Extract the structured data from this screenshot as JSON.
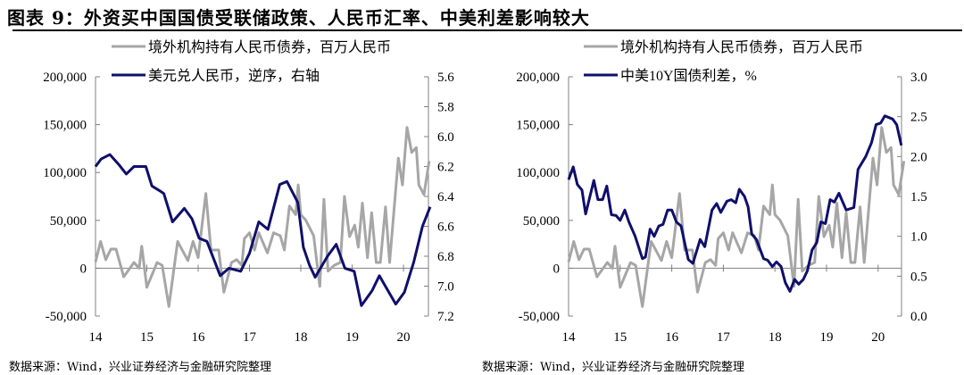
{
  "title": "图表 9：外资买中国国债受联储政策、人民币汇率、中美利差影响较大",
  "source_left": "数据来源：Wind，兴业证券经济与金融研究院整理",
  "source_right": "数据来源：Wind，兴业证券经济与金融研究院整理",
  "colors": {
    "gray": "#a6a6a6",
    "navy": "#0f0f6b"
  },
  "chart_data": [
    {
      "type": "line",
      "title": "",
      "x_ticks": [
        "14",
        "15",
        "16",
        "17",
        "18",
        "19",
        "20"
      ],
      "xlim": [
        2014,
        2020.6
      ],
      "y_left": {
        "ticks": [
          "200,000",
          "150,000",
          "100,000",
          "50,000",
          "0",
          "-50,000"
        ],
        "lim": [
          -50000,
          200000
        ]
      },
      "y_right": {
        "ticks": [
          "5.6",
          "5.8",
          "6.0",
          "6.2",
          "6.4",
          "6.6",
          "6.8",
          "7.0",
          "7.2"
        ],
        "lim": [
          5.6,
          7.2
        ],
        "inverted": true
      },
      "series": [
        {
          "name": "境外机构持有人民币债券，百万人民币",
          "axis": "left",
          "color": "gray",
          "x": [
            2014.0,
            2014.1,
            2014.2,
            2014.3,
            2014.4,
            2014.55,
            2014.75,
            2014.85,
            2014.9,
            2015.0,
            2015.2,
            2015.3,
            2015.43,
            2015.6,
            2015.8,
            2015.9,
            2016.0,
            2016.15,
            2016.25,
            2016.4,
            2016.5,
            2016.65,
            2016.75,
            2016.85,
            2016.9,
            2017.0,
            2017.1,
            2017.18,
            2017.35,
            2017.47,
            2017.6,
            2017.68,
            2017.78,
            2017.9,
            2017.95,
            2018.0,
            2018.1,
            2018.25,
            2018.37,
            2018.45,
            2018.53,
            2018.65,
            2018.77,
            2018.85,
            2018.95,
            2019.05,
            2019.12,
            2019.2,
            2019.3,
            2019.38,
            2019.47,
            2019.55,
            2019.65,
            2019.73,
            2019.9,
            2019.98,
            2020.07,
            2020.16,
            2020.25,
            2020.3,
            2020.4,
            2020.5
          ],
          "values": [
            6500,
            28000,
            9000,
            20000,
            20000,
            -9000,
            6000,
            0,
            23000,
            -20000,
            6000,
            3000,
            -40000,
            28000,
            8000,
            28000,
            11000,
            78000,
            19000,
            19000,
            -25000,
            6000,
            9000,
            3000,
            31000,
            37000,
            19000,
            37000,
            16000,
            37000,
            34000,
            19000,
            65000,
            56000,
            87000,
            56000,
            50000,
            34000,
            -19000,
            72000,
            -3000,
            3000,
            6000,
            75000,
            33000,
            45000,
            22000,
            68000,
            11000,
            58000,
            6000,
            6000,
            64000,
            6000,
            115000,
            87000,
            147000,
            121000,
            126000,
            87000,
            77000,
            112000
          ]
        },
        {
          "name": "美元兑人民币，逆序，右轴",
          "axis": "right",
          "color": "navy",
          "x": [
            2014.0,
            2014.11,
            2014.28,
            2014.46,
            2014.6,
            2014.75,
            2014.98,
            2015.1,
            2015.24,
            2015.33,
            2015.5,
            2015.73,
            2015.88,
            2016.02,
            2016.17,
            2016.43,
            2016.6,
            2016.83,
            2017.0,
            2017.18,
            2017.36,
            2017.59,
            2017.73,
            2017.94,
            2018.05,
            2018.17,
            2018.28,
            2018.52,
            2018.69,
            2018.86,
            2019.04,
            2019.18,
            2019.39,
            2019.53,
            2019.68,
            2019.85,
            2020.02,
            2020.2,
            2020.37,
            2020.52
          ],
          "values": [
            6.2,
            6.15,
            6.12,
            6.19,
            6.25,
            6.2,
            6.2,
            6.33,
            6.36,
            6.38,
            6.57,
            6.48,
            6.55,
            6.68,
            6.7,
            6.93,
            6.88,
            6.9,
            6.78,
            6.57,
            6.62,
            6.32,
            6.3,
            6.44,
            6.74,
            6.86,
            6.94,
            6.8,
            6.72,
            6.88,
            6.9,
            7.13,
            7.03,
            6.93,
            7.02,
            7.12,
            7.04,
            6.84,
            6.6,
            6.47
          ]
        }
      ]
    },
    {
      "type": "line",
      "title": "",
      "x_ticks": [
        "14",
        "15",
        "16",
        "17",
        "18",
        "19",
        "20"
      ],
      "xlim": [
        2014,
        2020.6
      ],
      "y_left": {
        "ticks": [
          "200,000",
          "150,000",
          "100,000",
          "50,000",
          "0",
          "-50,000"
        ],
        "lim": [
          -50000,
          200000
        ]
      },
      "y_right": {
        "ticks": [
          "3.0",
          "2.5",
          "2.0",
          "1.5",
          "1.0",
          "0.5",
          "0.0"
        ],
        "lim": [
          0,
          3.0
        ],
        "inverted": false
      },
      "series": [
        {
          "name": "境外机构持有人民币债券，百万人民币",
          "axis": "left",
          "color": "gray",
          "x": [
            2014.0,
            2014.1,
            2014.2,
            2014.3,
            2014.4,
            2014.55,
            2014.75,
            2014.85,
            2014.9,
            2015.0,
            2015.2,
            2015.3,
            2015.43,
            2015.6,
            2015.8,
            2015.9,
            2016.0,
            2016.15,
            2016.25,
            2016.4,
            2016.5,
            2016.65,
            2016.75,
            2016.85,
            2016.9,
            2017.0,
            2017.1,
            2017.18,
            2017.35,
            2017.47,
            2017.6,
            2017.68,
            2017.78,
            2017.9,
            2017.95,
            2018.0,
            2018.1,
            2018.25,
            2018.37,
            2018.45,
            2018.53,
            2018.65,
            2018.77,
            2018.85,
            2018.95,
            2019.05,
            2019.12,
            2019.2,
            2019.3,
            2019.38,
            2019.47,
            2019.55,
            2019.65,
            2019.73,
            2019.9,
            2019.98,
            2020.07,
            2020.16,
            2020.25,
            2020.3,
            2020.4,
            2020.5
          ],
          "values": [
            6500,
            28000,
            9000,
            20000,
            20000,
            -9000,
            6000,
            0,
            23000,
            -20000,
            6000,
            3000,
            -40000,
            28000,
            8000,
            28000,
            11000,
            78000,
            19000,
            19000,
            -25000,
            6000,
            9000,
            3000,
            31000,
            37000,
            19000,
            37000,
            16000,
            37000,
            34000,
            19000,
            65000,
            56000,
            87000,
            56000,
            50000,
            34000,
            -19000,
            72000,
            -3000,
            3000,
            6000,
            75000,
            33000,
            45000,
            22000,
            68000,
            11000,
            58000,
            6000,
            6000,
            64000,
            6000,
            115000,
            87000,
            147000,
            121000,
            126000,
            87000,
            77000,
            112000
          ]
        },
        {
          "name": "中美10Y国债利差，%",
          "axis": "right",
          "color": "navy",
          "x": [
            2014.0,
            2014.09,
            2014.17,
            2014.26,
            2014.33,
            2014.49,
            2014.57,
            2014.66,
            2014.74,
            2014.83,
            2014.92,
            2015.0,
            2015.09,
            2015.17,
            2015.29,
            2015.43,
            2015.49,
            2015.58,
            2015.66,
            2015.75,
            2015.83,
            2015.92,
            2016.0,
            2016.09,
            2016.18,
            2016.32,
            2016.41,
            2016.55,
            2016.64,
            2016.78,
            2016.87,
            2016.95,
            2017.07,
            2017.15,
            2017.24,
            2017.31,
            2017.41,
            2017.48,
            2017.55,
            2017.64,
            2017.78,
            2017.86,
            2017.95,
            2018.03,
            2018.12,
            2018.2,
            2018.29,
            2018.38,
            2018.46,
            2018.55,
            2018.63,
            2018.72,
            2018.81,
            2018.89,
            2018.98,
            2019.07,
            2019.15,
            2019.24,
            2019.38,
            2019.53,
            2019.61,
            2019.76,
            2019.87,
            2019.96,
            2020.05,
            2020.13,
            2020.28,
            2020.36,
            2020.45
          ],
          "values": [
            1.71,
            1.87,
            1.65,
            1.58,
            1.28,
            1.7,
            1.46,
            1.46,
            1.63,
            1.27,
            1.26,
            1.2,
            1.33,
            1.18,
            1.0,
            0.72,
            0.74,
            1.09,
            1.0,
            1.13,
            1.15,
            1.33,
            1.33,
            1.18,
            1.13,
            0.71,
            0.66,
            0.96,
            0.87,
            1.33,
            1.41,
            1.3,
            1.44,
            1.46,
            1.42,
            1.59,
            1.5,
            1.37,
            1.03,
            0.96,
            0.72,
            0.7,
            0.62,
            0.68,
            0.62,
            0.42,
            0.31,
            0.46,
            0.4,
            0.46,
            0.57,
            0.83,
            0.92,
            1.18,
            1.16,
            1.46,
            1.43,
            1.54,
            1.33,
            1.36,
            1.84,
            2.0,
            2.17,
            2.4,
            2.42,
            2.51,
            2.47,
            2.4,
            2.14
          ]
        }
      ]
    }
  ]
}
